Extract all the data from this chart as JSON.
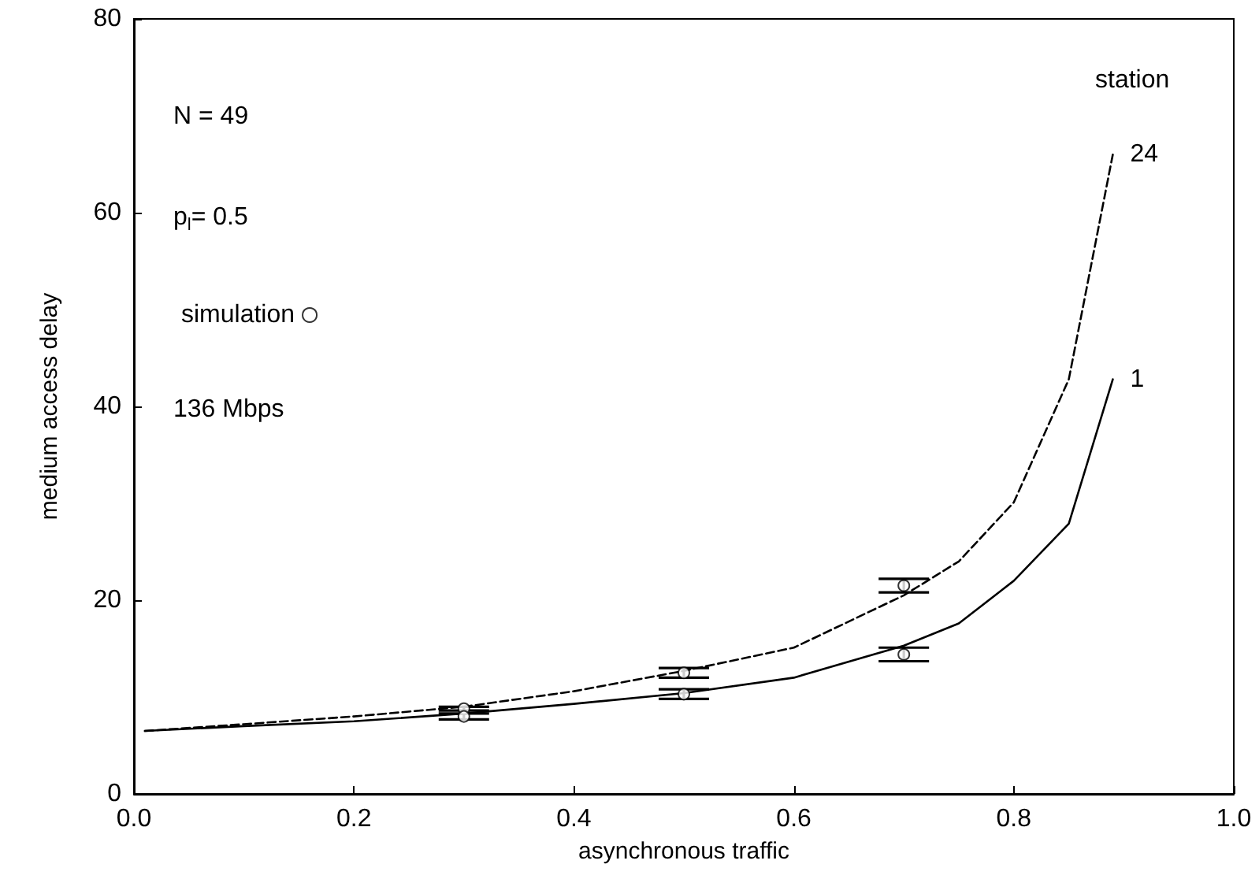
{
  "chart_data": {
    "type": "line",
    "xlabel": "asynchronous traffic",
    "ylabel": "medium access delay",
    "xlim": [
      0,
      1
    ],
    "xticks": [
      {
        "value": 0,
        "label": "0.0"
      },
      {
        "value": 0.2,
        "label": "0.2"
      },
      {
        "value": 0.4,
        "label": "0.4"
      },
      {
        "value": 0.6,
        "label": "0.6"
      },
      {
        "value": 0.8,
        "label": "0.8"
      },
      {
        "value": 1,
        "label": "1.0"
      }
    ],
    "ylim": [
      0,
      80
    ],
    "yticks": [
      0,
      20,
      40,
      60,
      80
    ],
    "grid": false,
    "legend": "top left",
    "marker": "none",
    "annotations": [
      "N = 49",
      "p$_{l}$= 0.5",
      "136 Mbps",
      "station"
    ],
    "series": [
      {
        "name": "24",
        "color": "#000000",
        "line_style": "dashed",
        "x": [
          0.01,
          0.1,
          0.2,
          0.3,
          0.4,
          0.5,
          0.6,
          0.7,
          0.75,
          0.8,
          0.85,
          0.89
        ],
        "values": [
          6.5,
          7.2,
          8.0,
          9.0,
          10.6,
          12.7,
          15.1,
          20.5,
          24.0,
          30.1,
          42.8,
          66.0
        ]
      },
      {
        "name": "1",
        "color": "#000000",
        "line_style": "solid",
        "x": [
          0.01,
          0.1,
          0.2,
          0.3,
          0.4,
          0.5,
          0.6,
          0.7,
          0.75,
          0.8,
          0.85,
          0.89
        ],
        "values": [
          6.5,
          7.0,
          7.5,
          8.3,
          9.3,
          10.4,
          12.0,
          15.3,
          17.6,
          22.0,
          27.9,
          42.8
        ]
      },
      {
        "name": "simulation",
        "type": "scatter",
        "color": "#000000",
        "marker": "circle",
        "x": [
          0.3,
          0.3,
          0.5,
          0.5,
          0.7,
          0.7
        ],
        "values": [
          8.8,
          8.0,
          12.5,
          10.3,
          21.5,
          14.4
        ],
        "errors": [
          0.2,
          0.3,
          0.5,
          0.5,
          0.7,
          0.7
        ]
      }
    ]
  }
}
